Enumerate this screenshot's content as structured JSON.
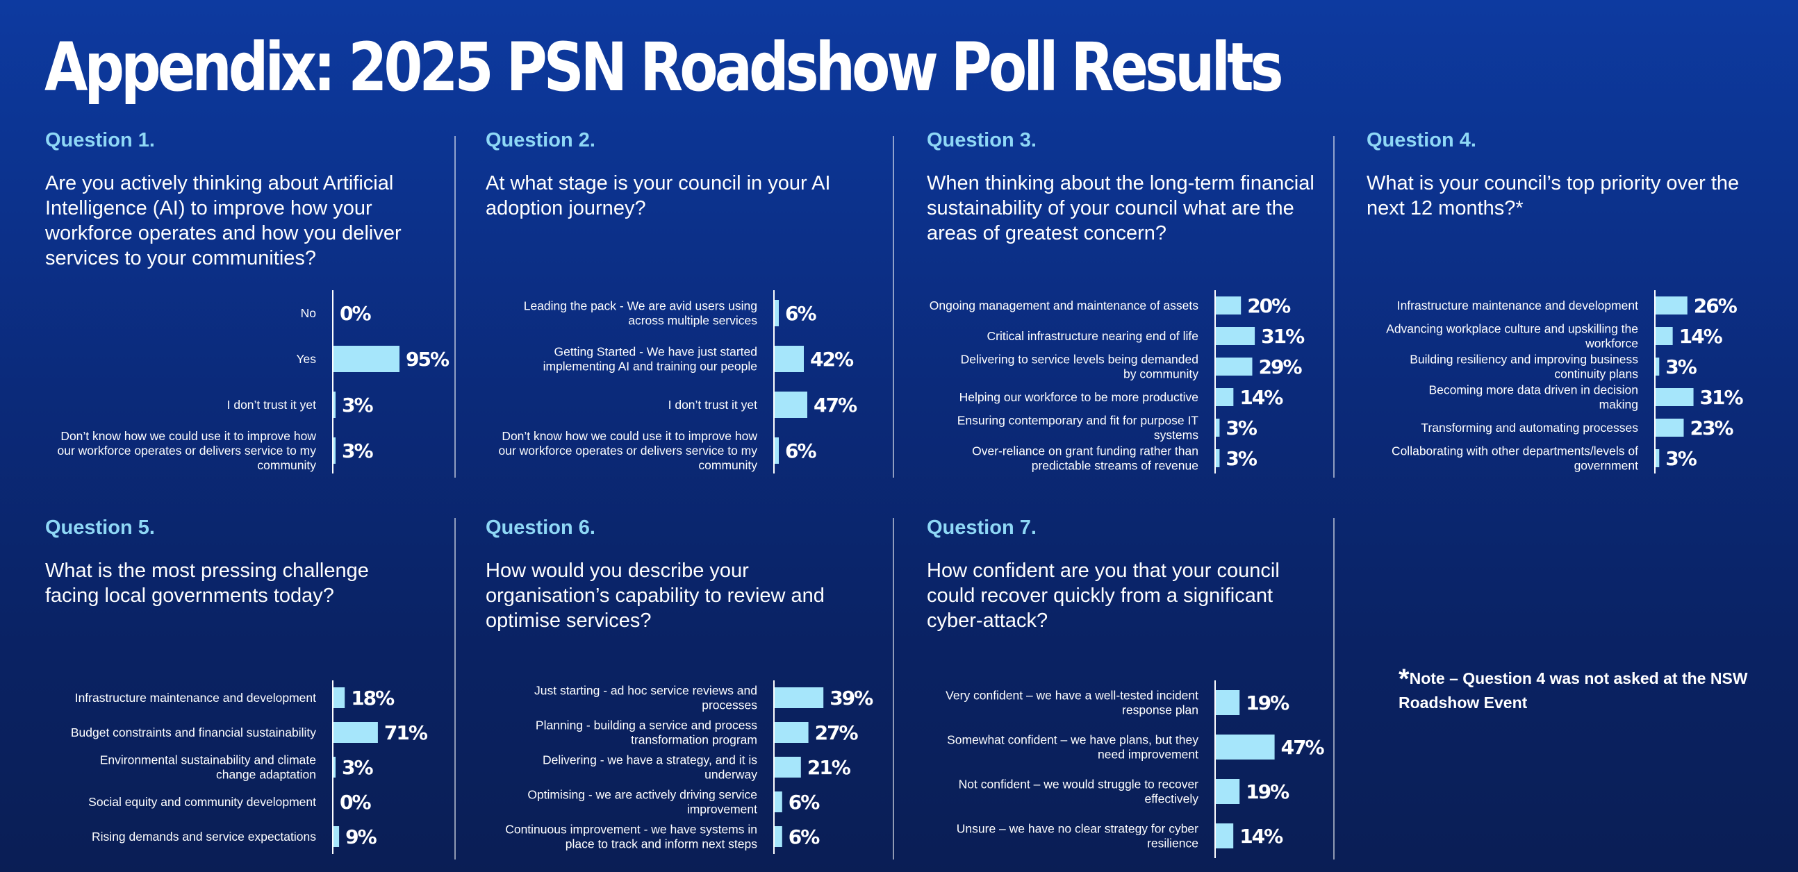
{
  "title": "Appendix: 2025 PSN Roadshow Poll Results",
  "note": {
    "star": "*",
    "text": "Note – Question 4 was not asked at the NSW Roadshow Event"
  },
  "colors": {
    "bar": "#a6e6fb",
    "question_label": "#8fd8f6",
    "background_top": "#0d3aa0",
    "background_bottom": "#0a1e55"
  },
  "questions": [
    {
      "label": "Question 1.",
      "text": "Are you actively thinking about Artificial Intelligence (AI) to improve how your workforce operates and how you deliver services to your communities?"
    },
    {
      "label": "Question 2.",
      "text": "At what stage is your council in your AI adoption journey?"
    },
    {
      "label": "Question 3.",
      "text": "When thinking about the long-term financial sustainability of your council what are the areas of greatest concern?"
    },
    {
      "label": "Question 4.",
      "text": "What is your council’s top priority over the next 12 months?*"
    },
    {
      "label": "Question 5.",
      "text": "What is the most pressing challenge facing local governments today?"
    },
    {
      "label": "Question 6.",
      "text": "How would you describe your organisation’s capability to review and optimise services?"
    },
    {
      "label": "Question 7.",
      "text": "How confident are you that your council could recover quickly from a significant cyber-attack?"
    }
  ],
  "chart_data": [
    {
      "type": "bar",
      "orientation": "horizontal",
      "question": "Question 1.",
      "categories": [
        "No",
        "Yes",
        "I don’t trust it yet",
        "Don’t know how we could use it to improve how our workforce operates or delivers service to my community"
      ],
      "label_lines": [
        [
          "No"
        ],
        [
          "Yes"
        ],
        [
          "I don’t trust it yet"
        ],
        [
          "Don’t know how we could use it to improve how",
          "our workforce operates or delivers service to my",
          "community"
        ]
      ],
      "values": [
        0,
        95,
        3,
        3
      ],
      "value_labels": [
        "0%",
        "95%",
        "3%",
        "3%"
      ],
      "unit": "%",
      "xlim": [
        0,
        100
      ],
      "grid": false
    },
    {
      "type": "bar",
      "orientation": "horizontal",
      "question": "Question 2.",
      "categories": [
        "Leading the pack - We are avid users using across multiple services",
        "Getting Started - We have just started implementing AI and training our people",
        "I don’t trust it yet",
        "Don’t know how we could use it to improve how our workforce operates or delivers service to my community"
      ],
      "label_lines": [
        [
          "Leading the pack - We are avid users using",
          "across multiple services"
        ],
        [
          "Getting Started - We have just started",
          "implementing AI and training our people"
        ],
        [
          "I don’t trust it yet"
        ],
        [
          "Don’t know how we could use it to improve how",
          "our workforce operates or delivers service to my",
          "community"
        ]
      ],
      "values": [
        6,
        42,
        47,
        6
      ],
      "value_labels": [
        "6%",
        "42%",
        "47%",
        "6%"
      ],
      "unit": "%",
      "xlim": [
        0,
        100
      ],
      "grid": false
    },
    {
      "type": "bar",
      "orientation": "horizontal",
      "question": "Question 3.",
      "categories": [
        "Ongoing management and maintenance of assets",
        "Critical infrastructure nearing end of life",
        "Delivering to service levels being demanded by community",
        "Helping our workforce to be more productive",
        "Ensuring contemporary and fit for purpose IT systems",
        "Over-reliance on grant funding rather than predictable streams of revenue"
      ],
      "label_lines": [
        [
          "Ongoing management and maintenance of assets"
        ],
        [
          "Critical infrastructure nearing end of life"
        ],
        [
          "Delivering to service levels being demanded",
          "by community"
        ],
        [
          "Helping our workforce to be more productive"
        ],
        [
          "Ensuring contemporary and fit for purpose IT",
          "systems"
        ],
        [
          "Over-reliance on grant funding rather than",
          "predictable streams of revenue"
        ]
      ],
      "values": [
        20,
        31,
        29,
        14,
        3,
        3
      ],
      "value_labels": [
        "20%",
        "31%",
        "29%",
        "14%",
        "3%",
        "3%"
      ],
      "unit": "%",
      "xlim": [
        0,
        100
      ],
      "grid": false
    },
    {
      "type": "bar",
      "orientation": "horizontal",
      "question": "Question 4.",
      "categories": [
        "Infrastructure maintenance and development",
        "Advancing workplace culture and upskilling the workforce",
        "Building resiliency and improving business continuity plans",
        "Becoming more data driven in decision making",
        "Transforming and automating processes",
        "Collaborating with other departments/levels of government"
      ],
      "label_lines": [
        [
          "Infrastructure maintenance and development"
        ],
        [
          "Advancing workplace culture and upskilling the",
          "workforce"
        ],
        [
          "Building resiliency and improving business",
          "continuity plans"
        ],
        [
          "Becoming more data driven in decision",
          "making"
        ],
        [
          "Transforming and automating processes"
        ],
        [
          "Collaborating with other departments/levels of",
          "government"
        ]
      ],
      "values": [
        26,
        14,
        3,
        31,
        23,
        3
      ],
      "value_labels": [
        "26%",
        "14%",
        "3%",
        "31%",
        "23%",
        "3%"
      ],
      "unit": "%",
      "xlim": [
        0,
        100
      ],
      "grid": false
    },
    {
      "type": "bar",
      "orientation": "horizontal",
      "question": "Question 5.",
      "categories": [
        "Infrastructure maintenance and development",
        "Budget constraints and financial sustainability",
        "Environmental sustainability and climate change adaptation",
        "Social equity and community development",
        "Rising demands and service expectations"
      ],
      "label_lines": [
        [
          "Infrastructure maintenance and development"
        ],
        [
          "Budget constraints and financial sustainability"
        ],
        [
          "Environmental sustainability and climate",
          "change adaptation"
        ],
        [
          "Social equity and community development"
        ],
        [
          "Rising demands and service expectations"
        ]
      ],
      "values": [
        18,
        71,
        3,
        0,
        9
      ],
      "value_labels": [
        "18%",
        "71%",
        "3%",
        "0%",
        "9%"
      ],
      "unit": "%",
      "xlim": [
        0,
        100
      ],
      "grid": false
    },
    {
      "type": "bar",
      "orientation": "horizontal",
      "question": "Question 6.",
      "categories": [
        "Just starting - ad hoc service reviews and processes",
        "Planning - building a service and process transformation program",
        "Delivering - we have a strategy, and it is underway",
        "Optimising - we are actively driving service improvement",
        "Continuous improvement - we have systems in place to track and inform next steps"
      ],
      "label_lines": [
        [
          "Just starting - ad hoc service reviews and",
          "processes"
        ],
        [
          "Planning - building a service and process",
          "transformation program"
        ],
        [
          "Delivering - we have a strategy, and it is",
          "underway"
        ],
        [
          "Optimising - we are actively driving service",
          "improvement"
        ],
        [
          "Continuous improvement - we have systems in",
          "place to track and inform next steps"
        ]
      ],
      "values": [
        39,
        27,
        21,
        6,
        6
      ],
      "value_labels": [
        "39%",
        "27%",
        "21%",
        "6%",
        "6%"
      ],
      "unit": "%",
      "xlim": [
        0,
        100
      ],
      "grid": false
    },
    {
      "type": "bar",
      "orientation": "horizontal",
      "question": "Question 7.",
      "categories": [
        "Very confident – we have a well-tested incident response plan",
        "Somewhat confident – we have plans, but they need improvement",
        "Not confident – we would struggle to recover effectively",
        "Unsure – we have no clear strategy for cyber resilience"
      ],
      "label_lines": [
        [
          "Very confident – we have a well-tested incident",
          "response plan"
        ],
        [
          "Somewhat confident – we have plans, but they",
          "need improvement"
        ],
        [
          "Not confident – we would struggle to recover",
          "effectively"
        ],
        [
          "Unsure – we have no clear strategy for cyber",
          "resilience"
        ]
      ],
      "values": [
        19,
        47,
        19,
        14
      ],
      "value_labels": [
        "19%",
        "47%",
        "19%",
        "14%"
      ],
      "unit": "%",
      "xlim": [
        0,
        100
      ],
      "grid": false
    }
  ]
}
